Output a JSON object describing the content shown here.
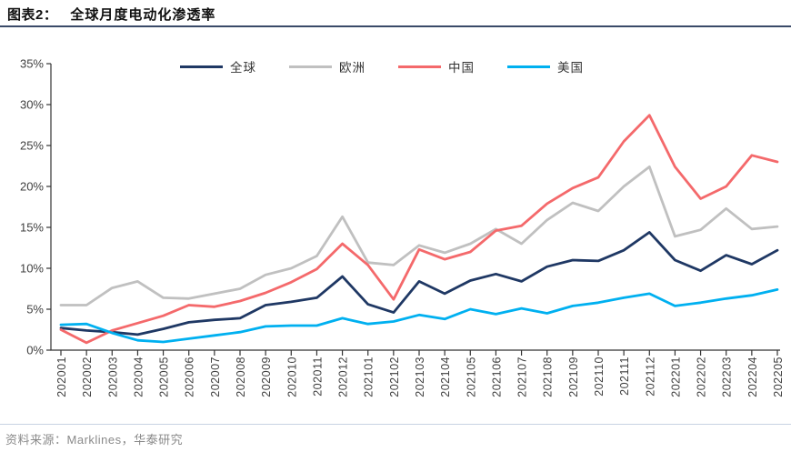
{
  "header": {
    "label": "图表2：",
    "title": "全球月度电动化渗透率"
  },
  "source": {
    "prefix": "资料来源：",
    "text": "Marklines，华泰研究"
  },
  "colors": {
    "accent_rule": "#3a4a68",
    "axis_line": "#333333",
    "axis_text": "#404040",
    "source_text": "#8a8a8a"
  },
  "chart_data": {
    "type": "line",
    "title": "全球月度电动化渗透率",
    "xlabel": "",
    "ylabel": "",
    "ylim": [
      0,
      35
    ],
    "y_ticks": [
      "0%",
      "5%",
      "10%",
      "15%",
      "20%",
      "25%",
      "30%",
      "35%"
    ],
    "grid": false,
    "legend_position": "top",
    "x": [
      "202001",
      "202002",
      "202003",
      "202004",
      "202005",
      "202006",
      "202007",
      "202008",
      "202009",
      "202010",
      "202011",
      "202012",
      "202101",
      "202102",
      "202103",
      "202104",
      "202105",
      "202106",
      "202107",
      "202108",
      "202109",
      "202110",
      "202111",
      "202112",
      "202201",
      "202202",
      "202203",
      "202204",
      "202205"
    ],
    "series": [
      {
        "key": "global",
        "name": "全球",
        "color": "#1f3864",
        "values": [
          2.7,
          2.4,
          2.2,
          1.9,
          2.6,
          3.4,
          3.7,
          3.9,
          5.5,
          5.9,
          6.4,
          9.0,
          5.6,
          4.6,
          8.4,
          6.9,
          8.5,
          9.3,
          8.4,
          10.2,
          11.0,
          10.9,
          12.2,
          14.4,
          11.0,
          9.7,
          11.6,
          10.5,
          12.2
        ]
      },
      {
        "key": "europe",
        "name": "欧洲",
        "color": "#c0c0c0",
        "values": [
          5.5,
          5.5,
          7.6,
          8.4,
          6.4,
          6.3,
          6.9,
          7.5,
          9.2,
          10.0,
          11.5,
          16.3,
          10.7,
          10.4,
          12.8,
          11.9,
          13.0,
          14.8,
          13.0,
          15.9,
          18.0,
          17.0,
          20.0,
          22.4,
          13.9,
          14.7,
          17.3,
          14.8,
          15.1
        ]
      },
      {
        "key": "china",
        "name": "中国",
        "color": "#f4696b",
        "values": [
          2.5,
          0.9,
          2.4,
          3.3,
          4.2,
          5.5,
          5.3,
          6.0,
          7.0,
          8.3,
          9.9,
          13.0,
          10.4,
          6.2,
          12.3,
          11.1,
          12.0,
          14.6,
          15.2,
          17.9,
          19.8,
          21.1,
          25.5,
          28.7,
          22.4,
          18.5,
          20.0,
          23.8,
          23.0
        ]
      },
      {
        "key": "us",
        "name": "美国",
        "color": "#00b0f0",
        "values": [
          3.1,
          3.2,
          2.1,
          1.2,
          1.0,
          1.4,
          1.8,
          2.2,
          2.9,
          3.0,
          3.0,
          3.9,
          3.2,
          3.5,
          4.3,
          3.8,
          5.0,
          4.4,
          5.1,
          4.5,
          5.4,
          5.8,
          6.4,
          6.9,
          5.4,
          5.8,
          6.3,
          6.7,
          7.4
        ]
      }
    ]
  }
}
